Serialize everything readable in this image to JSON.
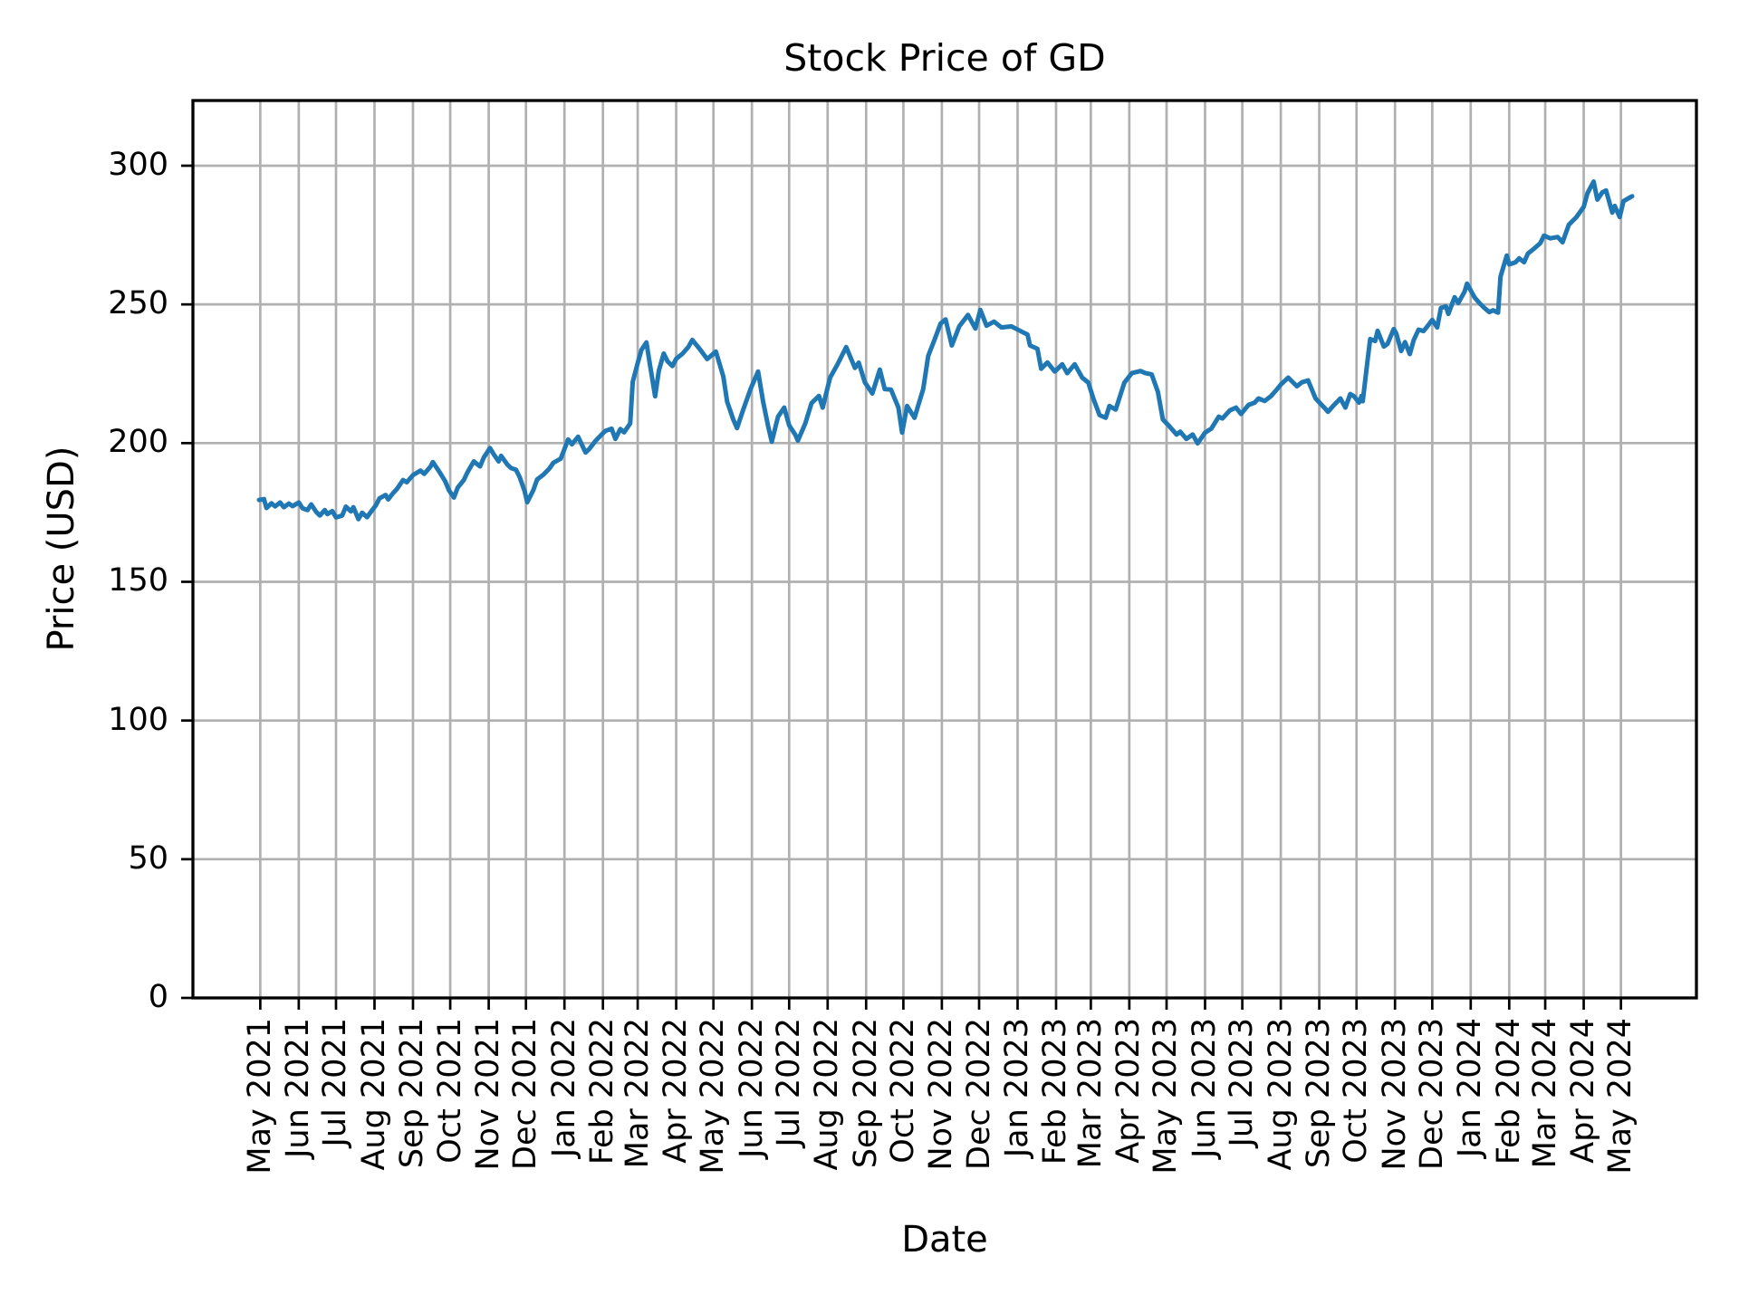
{
  "title": "Stock Price of GD",
  "axes": {
    "xlabel": "Date",
    "ylabel": "Price (USD)",
    "y_ticks": [
      0,
      50,
      100,
      150,
      200,
      250,
      300
    ],
    "x_ticks": [
      "May 2021",
      "Jun 2021",
      "Jul 2021",
      "Aug 2021",
      "Sep 2021",
      "Oct 2021",
      "Nov 2021",
      "Dec 2021",
      "Jan 2022",
      "Feb 2022",
      "Mar 2022",
      "Apr 2022",
      "May 2022",
      "Jun 2022",
      "Jul 2022",
      "Aug 2022",
      "Sep 2022",
      "Oct 2022",
      "Nov 2022",
      "Dec 2022",
      "Jan 2023",
      "Feb 2023",
      "Mar 2023",
      "Apr 2023",
      "May 2023",
      "Jun 2023",
      "Jul 2023",
      "Aug 2023",
      "Sep 2023",
      "Oct 2023",
      "Nov 2023",
      "Dec 2023",
      "Jan 2024",
      "Feb 2024",
      "Mar 2024",
      "Apr 2024",
      "May 2024"
    ]
  },
  "colors": {
    "line": "#1f77b4",
    "grid": "#b0b0b0",
    "spine": "#000000",
    "background": "#ffffff"
  },
  "chart_data": {
    "type": "line",
    "title": "Stock Price of GD",
    "xlabel": "Date",
    "ylabel": "Price (USD)",
    "ylim": [
      0,
      323.5
    ],
    "x_range": [
      "2021-04-30",
      "2024-05-10"
    ],
    "grid": true,
    "legend": false,
    "series": [
      {
        "name": "GD",
        "color": "#1f77b4",
        "points": [
          [
            "2021-04-30",
            179.5
          ],
          [
            "2021-05-04",
            179.8
          ],
          [
            "2021-05-06",
            176.6
          ],
          [
            "2021-05-10",
            178.3
          ],
          [
            "2021-05-13",
            177.2
          ],
          [
            "2021-05-17",
            178.6
          ],
          [
            "2021-05-20",
            176.9
          ],
          [
            "2021-05-24",
            178.2
          ],
          [
            "2021-05-27",
            177.3
          ],
          [
            "2021-06-01",
            178.6
          ],
          [
            "2021-06-04",
            176.5
          ],
          [
            "2021-06-08",
            175.9
          ],
          [
            "2021-06-11",
            177.9
          ],
          [
            "2021-06-15",
            175.2
          ],
          [
            "2021-06-18",
            173.9
          ],
          [
            "2021-06-22",
            175.9
          ],
          [
            "2021-06-24",
            174.4
          ],
          [
            "2021-06-28",
            175.5
          ],
          [
            "2021-07-01",
            173.2
          ],
          [
            "2021-07-06",
            173.9
          ],
          [
            "2021-07-09",
            177.1
          ],
          [
            "2021-07-13",
            175.4
          ],
          [
            "2021-07-15",
            176.9
          ],
          [
            "2021-07-19",
            172.6
          ],
          [
            "2021-07-22",
            174.9
          ],
          [
            "2021-07-26",
            173.3
          ],
          [
            "2021-07-29",
            175.2
          ],
          [
            "2021-08-02",
            177.5
          ],
          [
            "2021-08-05",
            180.1
          ],
          [
            "2021-08-10",
            181.3
          ],
          [
            "2021-08-12",
            179.7
          ],
          [
            "2021-08-16",
            182.0
          ],
          [
            "2021-08-19",
            183.4
          ],
          [
            "2021-08-24",
            186.7
          ],
          [
            "2021-08-27",
            185.9
          ],
          [
            "2021-09-01",
            188.5
          ],
          [
            "2021-09-07",
            190.1
          ],
          [
            "2021-09-10",
            188.9
          ],
          [
            "2021-09-15",
            191.5
          ],
          [
            "2021-09-17",
            193.2
          ],
          [
            "2021-09-22",
            189.8
          ],
          [
            "2021-09-27",
            186.2
          ],
          [
            "2021-09-30",
            183.0
          ],
          [
            "2021-10-04",
            180.4
          ],
          [
            "2021-10-07",
            183.9
          ],
          [
            "2021-10-12",
            186.8
          ],
          [
            "2021-10-15",
            189.6
          ],
          [
            "2021-10-20",
            193.4
          ],
          [
            "2021-10-25",
            191.6
          ],
          [
            "2021-10-28",
            194.8
          ],
          [
            "2021-11-02",
            198.2
          ],
          [
            "2021-11-05",
            196.0
          ],
          [
            "2021-11-09",
            193.4
          ],
          [
            "2021-11-11",
            195.4
          ],
          [
            "2021-11-16",
            192.3
          ],
          [
            "2021-11-19",
            191.0
          ],
          [
            "2021-11-23",
            190.4
          ],
          [
            "2021-11-26",
            187.7
          ],
          [
            "2021-11-30",
            182.6
          ],
          [
            "2021-12-02",
            178.7
          ],
          [
            "2021-12-07",
            183.1
          ],
          [
            "2021-12-10",
            186.9
          ],
          [
            "2021-12-15",
            188.6
          ],
          [
            "2021-12-20",
            190.9
          ],
          [
            "2021-12-23",
            192.9
          ],
          [
            "2021-12-29",
            194.4
          ],
          [
            "2022-01-04",
            201.3
          ],
          [
            "2022-01-07",
            199.6
          ],
          [
            "2022-01-12",
            202.3
          ],
          [
            "2022-01-18",
            196.6
          ],
          [
            "2022-01-21",
            197.9
          ],
          [
            "2022-01-26",
            200.8
          ],
          [
            "2022-01-31",
            203.1
          ],
          [
            "2022-02-03",
            204.4
          ],
          [
            "2022-02-08",
            205.2
          ],
          [
            "2022-02-11",
            201.5
          ],
          [
            "2022-02-15",
            205.1
          ],
          [
            "2022-02-18",
            203.9
          ],
          [
            "2022-02-23",
            207.1
          ],
          [
            "2022-02-25",
            222.1
          ],
          [
            "2022-03-01",
            228.9
          ],
          [
            "2022-03-04",
            233.6
          ],
          [
            "2022-03-08",
            236.3
          ],
          [
            "2022-03-11",
            227.9
          ],
          [
            "2022-03-15",
            216.9
          ],
          [
            "2022-03-18",
            226.1
          ],
          [
            "2022-03-22",
            232.3
          ],
          [
            "2022-03-25",
            229.5
          ],
          [
            "2022-03-29",
            227.8
          ],
          [
            "2022-04-01",
            230.4
          ],
          [
            "2022-04-06",
            232.2
          ],
          [
            "2022-04-11",
            234.8
          ],
          [
            "2022-04-14",
            237.2
          ],
          [
            "2022-04-20",
            233.9
          ],
          [
            "2022-04-26",
            230.3
          ],
          [
            "2022-05-03",
            233.0
          ],
          [
            "2022-05-09",
            224.0
          ],
          [
            "2022-05-12",
            215.0
          ],
          [
            "2022-05-17",
            208.5
          ],
          [
            "2022-05-20",
            205.4
          ],
          [
            "2022-05-25",
            212.1
          ],
          [
            "2022-05-31",
            219.6
          ],
          [
            "2022-06-06",
            225.8
          ],
          [
            "2022-06-10",
            215.0
          ],
          [
            "2022-06-14",
            206.2
          ],
          [
            "2022-06-17",
            200.5
          ],
          [
            "2022-06-22",
            209.5
          ],
          [
            "2022-06-27",
            212.8
          ],
          [
            "2022-07-01",
            206.4
          ],
          [
            "2022-07-06",
            203.0
          ],
          [
            "2022-07-08",
            200.9
          ],
          [
            "2022-07-14",
            207.1
          ],
          [
            "2022-07-19",
            214.4
          ],
          [
            "2022-07-25",
            217.0
          ],
          [
            "2022-07-28",
            212.8
          ],
          [
            "2022-08-03",
            223.6
          ],
          [
            "2022-08-09",
            228.4
          ],
          [
            "2022-08-16",
            234.6
          ],
          [
            "2022-08-23",
            227.1
          ],
          [
            "2022-08-26",
            229.0
          ],
          [
            "2022-08-31",
            221.9
          ],
          [
            "2022-09-06",
            217.9
          ],
          [
            "2022-09-12",
            226.5
          ],
          [
            "2022-09-16",
            219.5
          ],
          [
            "2022-09-21",
            219.3
          ],
          [
            "2022-09-27",
            212.8
          ],
          [
            "2022-09-30",
            203.8
          ],
          [
            "2022-10-04",
            213.4
          ],
          [
            "2022-10-10",
            209.1
          ],
          [
            "2022-10-13",
            213.6
          ],
          [
            "2022-10-17",
            219.5
          ],
          [
            "2022-10-21",
            231.4
          ],
          [
            "2022-10-26",
            237.2
          ],
          [
            "2022-10-31",
            243.1
          ],
          [
            "2022-11-04",
            244.6
          ],
          [
            "2022-11-09",
            235.2
          ],
          [
            "2022-11-15",
            242.1
          ],
          [
            "2022-11-22",
            246.2
          ],
          [
            "2022-11-28",
            241.3
          ],
          [
            "2022-12-02",
            248.0
          ],
          [
            "2022-12-07",
            242.3
          ],
          [
            "2022-12-13",
            243.8
          ],
          [
            "2022-12-19",
            241.7
          ],
          [
            "2022-12-27",
            242.1
          ],
          [
            "2023-01-03",
            240.5
          ],
          [
            "2023-01-09",
            239.1
          ],
          [
            "2023-01-11",
            235.2
          ],
          [
            "2023-01-17",
            234.0
          ],
          [
            "2023-01-20",
            226.8
          ],
          [
            "2023-01-25",
            229.1
          ],
          [
            "2023-01-31",
            225.8
          ],
          [
            "2023-02-06",
            228.4
          ],
          [
            "2023-02-10",
            225.2
          ],
          [
            "2023-02-16",
            228.4
          ],
          [
            "2023-02-22",
            223.6
          ],
          [
            "2023-02-27",
            221.8
          ],
          [
            "2023-03-03",
            216.1
          ],
          [
            "2023-03-08",
            210.1
          ],
          [
            "2023-03-13",
            209.1
          ],
          [
            "2023-03-16",
            213.4
          ],
          [
            "2023-03-21",
            212.1
          ],
          [
            "2023-03-28",
            221.8
          ],
          [
            "2023-04-03",
            225.2
          ],
          [
            "2023-04-10",
            226.0
          ],
          [
            "2023-04-14",
            225.2
          ],
          [
            "2023-04-19",
            224.8
          ],
          [
            "2023-04-24",
            218.5
          ],
          [
            "2023-04-28",
            208.5
          ],
          [
            "2023-05-03",
            206.2
          ],
          [
            "2023-05-09",
            203.1
          ],
          [
            "2023-05-12",
            204.1
          ],
          [
            "2023-05-17",
            201.5
          ],
          [
            "2023-05-22",
            203.1
          ],
          [
            "2023-05-26",
            199.9
          ],
          [
            "2023-06-01",
            203.8
          ],
          [
            "2023-06-06",
            205.2
          ],
          [
            "2023-06-12",
            209.5
          ],
          [
            "2023-06-15",
            208.9
          ],
          [
            "2023-06-21",
            211.8
          ],
          [
            "2023-06-26",
            212.8
          ],
          [
            "2023-06-30",
            210.5
          ],
          [
            "2023-07-06",
            213.8
          ],
          [
            "2023-07-11",
            214.6
          ],
          [
            "2023-07-14",
            216.1
          ],
          [
            "2023-07-19",
            215.2
          ],
          [
            "2023-07-24",
            216.9
          ],
          [
            "2023-07-28",
            218.9
          ],
          [
            "2023-08-01",
            221.1
          ],
          [
            "2023-08-07",
            223.6
          ],
          [
            "2023-08-14",
            220.5
          ],
          [
            "2023-08-18",
            221.9
          ],
          [
            "2023-08-23",
            222.6
          ],
          [
            "2023-08-29",
            216.1
          ],
          [
            "2023-09-05",
            212.8
          ],
          [
            "2023-09-08",
            211.3
          ],
          [
            "2023-09-13",
            213.8
          ],
          [
            "2023-09-18",
            216.1
          ],
          [
            "2023-09-22",
            212.8
          ],
          [
            "2023-09-26",
            217.7
          ],
          [
            "2023-09-29",
            216.9
          ],
          [
            "2023-10-03",
            214.6
          ],
          [
            "2023-10-05",
            217.0
          ],
          [
            "2023-10-06",
            215.1
          ],
          [
            "2023-10-10",
            230.1
          ],
          [
            "2023-10-12",
            237.5
          ],
          [
            "2023-10-16",
            236.8
          ],
          [
            "2023-10-18",
            240.5
          ],
          [
            "2023-10-23",
            234.8
          ],
          [
            "2023-10-26",
            235.8
          ],
          [
            "2023-10-31",
            241.1
          ],
          [
            "2023-11-02",
            239.5
          ],
          [
            "2023-11-06",
            233.2
          ],
          [
            "2023-11-09",
            236.4
          ],
          [
            "2023-11-13",
            232.1
          ],
          [
            "2023-11-16",
            237.1
          ],
          [
            "2023-11-20",
            240.9
          ],
          [
            "2023-11-24",
            240.4
          ],
          [
            "2023-11-28",
            242.6
          ],
          [
            "2023-12-01",
            244.4
          ],
          [
            "2023-12-05",
            241.7
          ],
          [
            "2023-12-08",
            248.7
          ],
          [
            "2023-12-12",
            249.3
          ],
          [
            "2023-12-14",
            246.6
          ],
          [
            "2023-12-19",
            252.6
          ],
          [
            "2023-12-22",
            250.5
          ],
          [
            "2023-12-27",
            254.6
          ],
          [
            "2023-12-29",
            257.5
          ],
          [
            "2024-01-04",
            252.6
          ],
          [
            "2024-01-08",
            250.5
          ],
          [
            "2024-01-12",
            248.7
          ],
          [
            "2024-01-16",
            247.2
          ],
          [
            "2024-01-19",
            247.9
          ],
          [
            "2024-01-23",
            247.0
          ],
          [
            "2024-01-25",
            260.0
          ],
          [
            "2024-01-30",
            267.6
          ],
          [
            "2024-02-01",
            264.4
          ],
          [
            "2024-02-06",
            265.2
          ],
          [
            "2024-02-09",
            266.6
          ],
          [
            "2024-02-13",
            265.2
          ],
          [
            "2024-02-16",
            268.3
          ],
          [
            "2024-02-21",
            270.1
          ],
          [
            "2024-02-26",
            272.1
          ],
          [
            "2024-02-29",
            274.8
          ],
          [
            "2024-03-05",
            273.8
          ],
          [
            "2024-03-11",
            274.3
          ],
          [
            "2024-03-15",
            272.4
          ],
          [
            "2024-03-20",
            278.7
          ],
          [
            "2024-03-26",
            281.4
          ],
          [
            "2024-04-01",
            285.1
          ],
          [
            "2024-04-04",
            290.1
          ],
          [
            "2024-04-09",
            294.3
          ],
          [
            "2024-04-12",
            287.8
          ],
          [
            "2024-04-16",
            290.4
          ],
          [
            "2024-04-19",
            291.1
          ],
          [
            "2024-04-24",
            283.1
          ],
          [
            "2024-04-26",
            285.5
          ],
          [
            "2024-04-30",
            281.5
          ],
          [
            "2024-05-03",
            287.2
          ],
          [
            "2024-05-08",
            288.5
          ],
          [
            "2024-05-10",
            289.0
          ]
        ]
      }
    ]
  }
}
